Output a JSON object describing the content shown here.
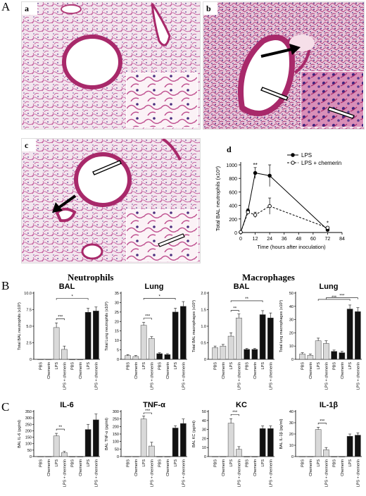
{
  "panels": {
    "A": "A",
    "B": "B",
    "C": "C",
    "a": "a",
    "b": "b",
    "c": "c",
    "d": "d"
  },
  "group_titles": {
    "neutrophils": "Neutrophils",
    "macrophages": "Macrophages"
  },
  "colors": {
    "saline": "#d9d9d9",
    "chemerin_bar": "#111111",
    "tissue": "#c85a8e",
    "airway": "#a8296a"
  },
  "chart_data": [
    {
      "id": "d",
      "type": "line",
      "xlabel": "Time (hours after inoculation)",
      "ylabel": "Total BAL neutrophils (x10³)",
      "xticks": [
        "0",
        "12",
        "24",
        "36",
        "48",
        "60",
        "72",
        "84"
      ],
      "yticks": [
        "0",
        "200",
        "400",
        "600",
        "800",
        "1000"
      ],
      "xlim": [
        0,
        84
      ],
      "ylim": [
        0,
        1000
      ],
      "series": [
        {
          "name": "LPS",
          "x": [
            0,
            6,
            12,
            24,
            72
          ],
          "y": [
            5,
            320,
            880,
            840,
            40
          ],
          "err": [
            5,
            30,
            80,
            160,
            20
          ],
          "style": "solid",
          "marker": "filled"
        },
        {
          "name": "LPS + chemerin",
          "x": [
            0,
            6,
            12,
            24,
            72
          ],
          "y": [
            5,
            300,
            260,
            390,
            70
          ],
          "err": [
            5,
            30,
            40,
            120,
            20
          ],
          "style": "dashed",
          "marker": "open"
        }
      ],
      "annotations": [
        "**",
        "*"
      ]
    },
    {
      "id": "b1",
      "type": "bar",
      "title": "BAL",
      "ylabel": "Total BAL neutrophils (x10³)",
      "yticks": [
        "0",
        "2.5",
        "5.0",
        "7.5",
        "10.0"
      ],
      "ylim": [
        0,
        10
      ],
      "categories": [
        "PBS",
        "Chemerin",
        "LPS",
        "LPS + chemerin",
        "PBS",
        "Chemerin",
        "LPS",
        "LPS + chemerin"
      ],
      "values": [
        0,
        0,
        4.8,
        1.5,
        0,
        0,
        7.1,
        7.3
      ],
      "errors": [
        0,
        0,
        0.7,
        0.5,
        0,
        0,
        0.6,
        0.6
      ],
      "sig": [
        {
          "from": 2,
          "to": 3,
          "label": "***"
        },
        {
          "from": 2,
          "to": 6,
          "label": "*"
        }
      ]
    },
    {
      "id": "b2",
      "type": "bar",
      "title": "Lung",
      "ylabel": "Total Lung neutrophils (x10³)",
      "yticks": [
        "0",
        "5",
        "10",
        "15",
        "20",
        "25",
        "30",
        "35"
      ],
      "ylim": [
        0,
        35
      ],
      "categories": [
        "PBS",
        "Chemerin",
        "LPS",
        "LPS + chemerin",
        "PBS",
        "Chemerin",
        "LPS",
        "LPS + chemerin"
      ],
      "values": [
        2,
        1.5,
        18,
        11,
        3,
        2.5,
        25,
        28
      ],
      "errors": [
        0.5,
        0.5,
        1.5,
        1,
        0.5,
        0.5,
        2,
        2.5
      ],
      "sig": [
        {
          "from": 2,
          "to": 3,
          "label": "***"
        },
        {
          "from": 2,
          "to": 6,
          "label": "*"
        }
      ]
    },
    {
      "id": "b3",
      "type": "bar",
      "title": "BAL",
      "ylabel": "Total BAL macrophages (x10³)",
      "yticks": [
        "0",
        "0.5",
        "1.0",
        "1.5",
        "2.0"
      ],
      "ylim": [
        0,
        2
      ],
      "categories": [
        "PBS",
        "Chemerin",
        "LPS",
        "LPS + chemerin",
        "PBS",
        "Chemerin",
        "LPS",
        "LPS + chemerin"
      ],
      "values": [
        0.35,
        0.4,
        0.7,
        1.25,
        0.3,
        0.3,
        1.35,
        1.25
      ],
      "errors": [
        0.05,
        0.05,
        0.1,
        0.12,
        0.03,
        0.03,
        0.12,
        0.15
      ],
      "sig": [
        {
          "from": 2,
          "to": 3,
          "label": "**"
        },
        {
          "from": 2,
          "to": 6,
          "label": "**"
        }
      ]
    },
    {
      "id": "b4",
      "type": "bar",
      "title": "Lung",
      "ylabel": "Total lung macrophages (x10³)",
      "yticks": [
        "0",
        "10",
        "20",
        "30",
        "40",
        "50"
      ],
      "ylim": [
        0,
        50
      ],
      "categories": [
        "PBS",
        "Chemerin",
        "LPS",
        "LPS + chemerin",
        "PBS",
        "Chemerin",
        "LPS",
        "LPS + chemerin"
      ],
      "values": [
        4,
        3,
        14,
        12,
        6,
        5,
        38,
        36
      ],
      "errors": [
        1,
        1,
        2,
        2,
        1,
        1,
        3,
        3
      ],
      "sig": [
        {
          "from": 2,
          "to": 6,
          "label": "***"
        },
        {
          "from": 3,
          "to": 7,
          "label": "***"
        }
      ]
    },
    {
      "id": "c1",
      "type": "bar",
      "title": "IL-6",
      "ylabel": "BAL IL-6 (pg/ml)",
      "yticks": [
        "0",
        "50",
        "100",
        "150",
        "200",
        "250",
        "300",
        "350"
      ],
      "ylim": [
        0,
        350
      ],
      "categories": [
        "PBS",
        "Chemerin",
        "LPS",
        "LPS + chemerin",
        "PBS",
        "Chemerin",
        "LPS",
        "LPS + chemerin"
      ],
      "values": [
        0,
        0,
        160,
        30,
        0,
        0,
        210,
        285
      ],
      "errors": [
        0,
        0,
        20,
        10,
        0,
        0,
        40,
        45
      ],
      "sig": [
        {
          "from": 2,
          "to": 3,
          "label": "**"
        }
      ]
    },
    {
      "id": "c2",
      "type": "bar",
      "title": "TNF-α",
      "ylabel": "BAL TNF-α (pg/ml)",
      "yticks": [
        "0",
        "50",
        "100",
        "150",
        "200",
        "250",
        "300"
      ],
      "ylim": [
        0,
        300
      ],
      "categories": [
        "PBS",
        "Chemerin",
        "LPS",
        "LPS + chemerin",
        "PBS",
        "Chemerin",
        "LPS",
        "LPS + chemerin"
      ],
      "values": [
        0,
        0,
        250,
        70,
        0,
        0,
        190,
        220
      ],
      "errors": [
        0,
        0,
        20,
        25,
        0,
        0,
        15,
        30
      ],
      "sig": [
        {
          "from": 2,
          "to": 3,
          "label": "***"
        }
      ]
    },
    {
      "id": "c3",
      "type": "bar",
      "title": "KC",
      "ylabel": "BAL KC (pg/ml)",
      "yticks": [
        "0",
        "10",
        "20",
        "30",
        "40",
        "50"
      ],
      "ylim": [
        0,
        50
      ],
      "categories": [
        "PBS",
        "Chemerin",
        "LPS",
        "LPS + chemerin",
        "PBS",
        "Chemerin",
        "LPS",
        "LPS + chemerin"
      ],
      "values": [
        0,
        0,
        37,
        8,
        0,
        0,
        31,
        31
      ],
      "errors": [
        0,
        0,
        5,
        3,
        0,
        0,
        3,
        3
      ],
      "sig": [
        {
          "from": 2,
          "to": 3,
          "label": "***"
        }
      ]
    },
    {
      "id": "c4",
      "type": "bar",
      "title": "IL-1β",
      "ylabel": "BAL IL-1β (pg/ml)",
      "yticks": [
        "0",
        "10",
        "20",
        "30",
        "40"
      ],
      "ylim": [
        0,
        40
      ],
      "categories": [
        "PBS",
        "Chemerin",
        "LPS",
        "LPS + chemerin",
        "PBS",
        "Chemerin",
        "LPS",
        "LPS + chemerin"
      ],
      "values": [
        0,
        0,
        24,
        6,
        0,
        0,
        18,
        19
      ],
      "errors": [
        0,
        0,
        2,
        2,
        0,
        0,
        2,
        2
      ],
      "sig": [
        {
          "from": 2,
          "to": 3,
          "label": "***"
        }
      ]
    }
  ]
}
